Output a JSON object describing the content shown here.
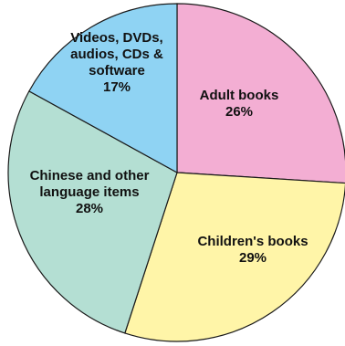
{
  "chart_data": {
    "type": "pie",
    "start_angle_deg": 0,
    "direction": "clockwise",
    "slices": [
      {
        "label_lines": [
          "Adult books"
        ],
        "value": 26,
        "pct_text": "26%",
        "color": "#f3aed3"
      },
      {
        "label_lines": [
          "Children's books"
        ],
        "value": 29,
        "pct_text": "29%",
        "color": "#fff5a8"
      },
      {
        "label_lines": [
          "Chinese and other",
          "language items"
        ],
        "value": 28,
        "pct_text": "28%",
        "color": "#b4dfd3"
      },
      {
        "label_lines": [
          "Videos, DVDs,",
          "audios, CDs &",
          "software"
        ],
        "value": 17,
        "pct_text": "17%",
        "color": "#8fd3f3"
      }
    ]
  }
}
